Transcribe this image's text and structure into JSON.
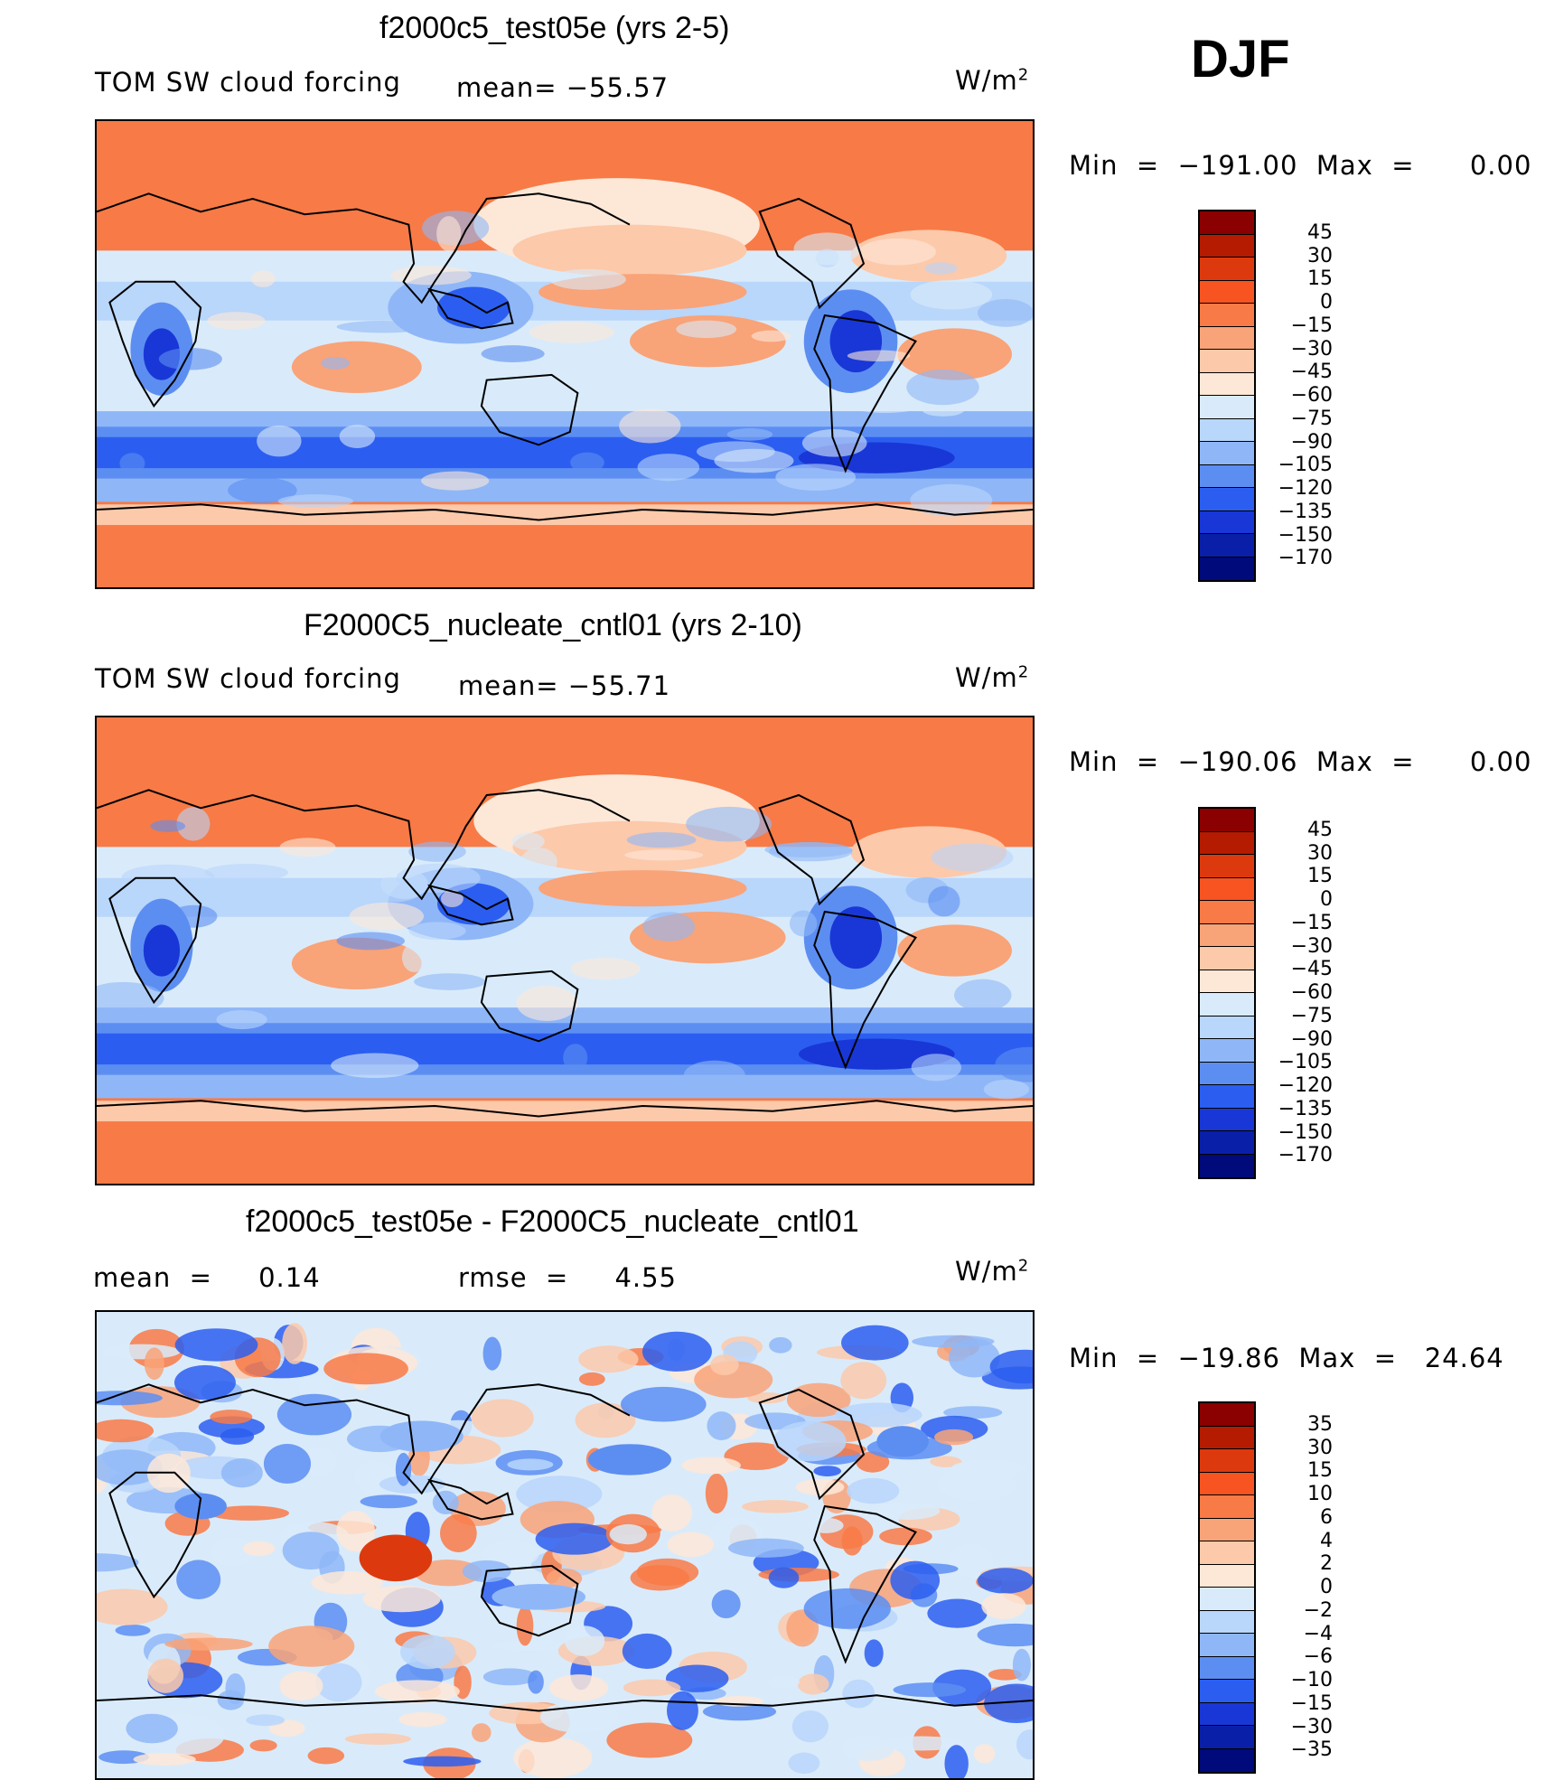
{
  "season": "DJF",
  "panels": [
    {
      "title": "f2000c5_test05e (yrs 2-5)",
      "left_label": "TOM SW cloud forcing",
      "mid_label": "mean= −55.57",
      "units": "W/m",
      "units_exp": "2",
      "minmax": "Min  =  −191.00  Max  =      0.00",
      "levels": [
        "45",
        "30",
        "15",
        "0",
        "−15",
        "−30",
        "−45",
        "−60",
        "−75",
        "−90",
        "−105",
        "−120",
        "−135",
        "−150",
        "−170"
      ],
      "colors": [
        "#8b0000",
        "#b51b00",
        "#dc3a0e",
        "#f75421",
        "#f87a46",
        "#f9a378",
        "#fcc9aa",
        "#fde8d8",
        "#d9ebfa",
        "#b9d6fb",
        "#8fb7f7",
        "#5c8ef2",
        "#2b5ef0",
        "#1937d6",
        "#0a1fa8",
        "#000a7a"
      ],
      "map": {
        "kind": "mean",
        "seed": 11
      }
    },
    {
      "title": "F2000C5_nucleate_cntl01 (yrs 2-10)",
      "left_label": "TOM SW cloud forcing",
      "mid_label": "mean= −55.71",
      "units": "W/m",
      "units_exp": "2",
      "minmax": "Min  =  −190.06  Max  =      0.00",
      "levels": [
        "45",
        "30",
        "15",
        "0",
        "−15",
        "−30",
        "−45",
        "−60",
        "−75",
        "−90",
        "−105",
        "−120",
        "−135",
        "−150",
        "−170"
      ],
      "colors": [
        "#8b0000",
        "#b51b00",
        "#dc3a0e",
        "#f75421",
        "#f87a46",
        "#f9a378",
        "#fcc9aa",
        "#fde8d8",
        "#d9ebfa",
        "#b9d6fb",
        "#8fb7f7",
        "#5c8ef2",
        "#2b5ef0",
        "#1937d6",
        "#0a1fa8",
        "#000a7a"
      ],
      "map": {
        "kind": "mean",
        "seed": 23
      }
    },
    {
      "title": "f2000c5_test05e - F2000C5_nucleate_cntl01",
      "left_label": "mean  =     0.14",
      "mid_label": "rmse  =     4.55",
      "units": "W/m",
      "units_exp": "2",
      "minmax": "Min  =  −19.86  Max  =   24.64",
      "levels": [
        "35",
        "30",
        "15",
        "10",
        "6",
        "4",
        "2",
        "0",
        "−2",
        "−4",
        "−6",
        "−10",
        "−15",
        "−30",
        "−35"
      ],
      "colors": [
        "#8b0000",
        "#b51b00",
        "#dc3a0e",
        "#f75421",
        "#f87a46",
        "#f9a378",
        "#fcc9aa",
        "#fde8d8",
        "#d9ebfa",
        "#b9d6fb",
        "#8fb7f7",
        "#5c8ef2",
        "#2b5ef0",
        "#1937d6",
        "#0a1fa8",
        "#000a7a"
      ],
      "map": {
        "kind": "diff",
        "seed": 37
      }
    }
  ]
}
